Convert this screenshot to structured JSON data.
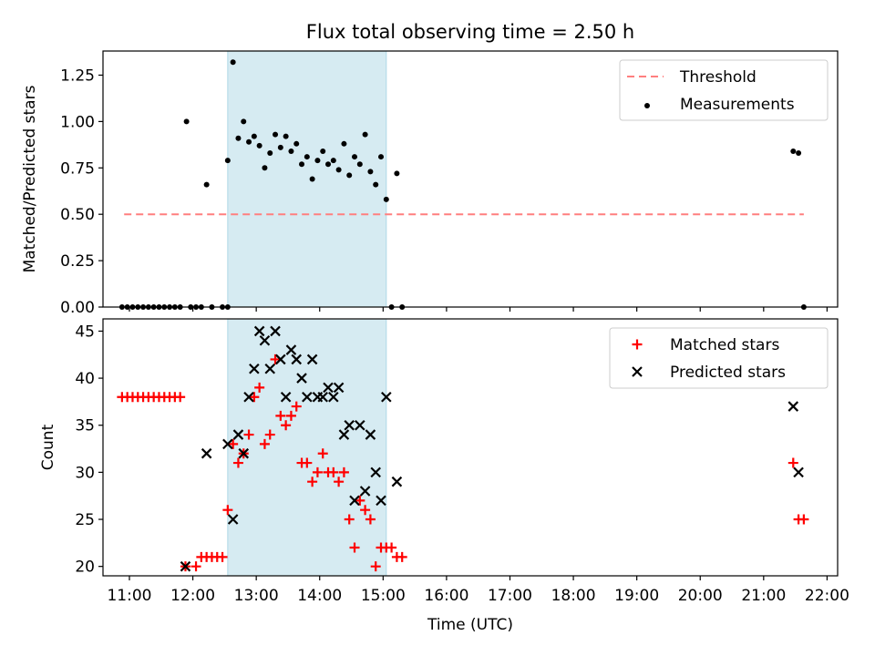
{
  "figure": {
    "title": "Flux total observing time = 2.50 h"
  },
  "chart_data": [
    {
      "type": "scatter",
      "panel": "top",
      "xlabel": "",
      "ylabel": "Matched/Predicted stars",
      "xlim": [
        "10:35",
        "22:10"
      ],
      "ylim": [
        0,
        1.38
      ],
      "yticks": [
        "0.00",
        "0.25",
        "0.50",
        "0.75",
        "1.00",
        "1.25"
      ],
      "grid": false,
      "legend": "top-right",
      "shaded_interval": [
        "12:33",
        "15:03"
      ],
      "threshold": {
        "name": "Threshold",
        "y": 0.5,
        "x": [
          "10:55",
          "21:38"
        ],
        "color": "#ff7f7f",
        "style": "dashed"
      },
      "series": [
        {
          "name": "Measurements",
          "marker": "dot",
          "color": "#000000",
          "points": [
            [
              "10:53",
              0.0
            ],
            [
              "10:58",
              0.0
            ],
            [
              "11:03",
              0.0
            ],
            [
              "11:08",
              0.0
            ],
            [
              "11:13",
              0.0
            ],
            [
              "11:18",
              0.0
            ],
            [
              "11:23",
              0.0
            ],
            [
              "11:28",
              0.0
            ],
            [
              "11:33",
              0.0
            ],
            [
              "11:38",
              0.0
            ],
            [
              "11:43",
              0.0
            ],
            [
              "11:48",
              0.0
            ],
            [
              "11:54",
              1.0
            ],
            [
              "11:58",
              0.0
            ],
            [
              "12:03",
              0.0
            ],
            [
              "12:08",
              0.0
            ],
            [
              "12:13",
              0.66
            ],
            [
              "12:18",
              0.0
            ],
            [
              "12:28",
              0.0
            ],
            [
              "12:33",
              0.0
            ],
            [
              "12:33",
              0.79
            ],
            [
              "12:38",
              1.32
            ],
            [
              "12:43",
              0.91
            ],
            [
              "12:48",
              1.0
            ],
            [
              "12:53",
              0.89
            ],
            [
              "12:58",
              0.92
            ],
            [
              "13:03",
              0.87
            ],
            [
              "13:08",
              0.75
            ],
            [
              "13:13",
              0.83
            ],
            [
              "13:18",
              0.93
            ],
            [
              "13:23",
              0.86
            ],
            [
              "13:28",
              0.92
            ],
            [
              "13:33",
              0.84
            ],
            [
              "13:38",
              0.88
            ],
            [
              "13:43",
              0.77
            ],
            [
              "13:48",
              0.81
            ],
            [
              "13:53",
              0.69
            ],
            [
              "13:58",
              0.79
            ],
            [
              "14:03",
              0.84
            ],
            [
              "14:08",
              0.77
            ],
            [
              "14:13",
              0.79
            ],
            [
              "14:18",
              0.74
            ],
            [
              "14:23",
              0.88
            ],
            [
              "14:28",
              0.71
            ],
            [
              "14:33",
              0.81
            ],
            [
              "14:38",
              0.77
            ],
            [
              "14:43",
              0.93
            ],
            [
              "14:48",
              0.73
            ],
            [
              "14:53",
              0.66
            ],
            [
              "14:58",
              0.81
            ],
            [
              "15:03",
              0.58
            ],
            [
              "15:08",
              0.0
            ],
            [
              "15:13",
              0.72
            ],
            [
              "15:18",
              0.0
            ],
            [
              "21:28",
              0.84
            ],
            [
              "21:33",
              0.83
            ],
            [
              "21:38",
              0.0
            ]
          ]
        }
      ]
    },
    {
      "type": "scatter",
      "panel": "bottom",
      "xlabel": "Time (UTC)",
      "ylabel": "Count",
      "xlim": [
        "10:35",
        "22:10"
      ],
      "ylim": [
        19,
        46.3
      ],
      "xticks": [
        "11:00",
        "12:00",
        "13:00",
        "14:00",
        "15:00",
        "16:00",
        "17:00",
        "18:00",
        "19:00",
        "20:00",
        "21:00",
        "22:00"
      ],
      "yticks": [
        "20",
        "25",
        "30",
        "35",
        "40",
        "45"
      ],
      "grid": false,
      "legend": "top-right",
      "shaded_interval": [
        "12:33",
        "15:03"
      ],
      "series": [
        {
          "name": "Matched stars",
          "marker": "plus",
          "color": "#ff0000",
          "points": [
            [
              "10:53",
              38
            ],
            [
              "10:58",
              38
            ],
            [
              "11:03",
              38
            ],
            [
              "11:08",
              38
            ],
            [
              "11:13",
              38
            ],
            [
              "11:18",
              38
            ],
            [
              "11:23",
              38
            ],
            [
              "11:28",
              38
            ],
            [
              "11:33",
              38
            ],
            [
              "11:38",
              38
            ],
            [
              "11:43",
              38
            ],
            [
              "11:48",
              38
            ],
            [
              "11:53",
              20
            ],
            [
              "12:03",
              20
            ],
            [
              "12:08",
              21
            ],
            [
              "12:13",
              21
            ],
            [
              "12:18",
              21
            ],
            [
              "12:23",
              21
            ],
            [
              "12:28",
              21
            ],
            [
              "12:33",
              26
            ],
            [
              "12:38",
              33
            ],
            [
              "12:43",
              31
            ],
            [
              "12:48",
              32
            ],
            [
              "12:53",
              34
            ],
            [
              "12:58",
              38
            ],
            [
              "13:03",
              39
            ],
            [
              "13:08",
              33
            ],
            [
              "13:13",
              34
            ],
            [
              "13:18",
              42
            ],
            [
              "13:23",
              36
            ],
            [
              "13:28",
              35
            ],
            [
              "13:33",
              36
            ],
            [
              "13:38",
              37
            ],
            [
              "13:43",
              31
            ],
            [
              "13:48",
              31
            ],
            [
              "13:53",
              29
            ],
            [
              "13:58",
              30
            ],
            [
              "14:03",
              32
            ],
            [
              "14:08",
              30
            ],
            [
              "14:13",
              30
            ],
            [
              "14:18",
              29
            ],
            [
              "14:23",
              30
            ],
            [
              "14:28",
              25
            ],
            [
              "14:33",
              22
            ],
            [
              "14:38",
              27
            ],
            [
              "14:43",
              26
            ],
            [
              "14:48",
              25
            ],
            [
              "14:53",
              20
            ],
            [
              "14:58",
              22
            ],
            [
              "15:03",
              22
            ],
            [
              "15:08",
              22
            ],
            [
              "15:13",
              21
            ],
            [
              "15:18",
              21
            ],
            [
              "21:28",
              31
            ],
            [
              "21:33",
              25
            ],
            [
              "21:38",
              25
            ]
          ]
        },
        {
          "name": "Predicted stars",
          "marker": "x",
          "color": "#000000",
          "points": [
            [
              "11:53",
              20
            ],
            [
              "12:13",
              32
            ],
            [
              "12:33",
              33
            ],
            [
              "12:38",
              25
            ],
            [
              "12:43",
              34
            ],
            [
              "12:48",
              32
            ],
            [
              "12:53",
              38
            ],
            [
              "12:58",
              41
            ],
            [
              "13:03",
              45
            ],
            [
              "13:08",
              44
            ],
            [
              "13:13",
              41
            ],
            [
              "13:18",
              45
            ],
            [
              "13:23",
              42
            ],
            [
              "13:28",
              38
            ],
            [
              "13:33",
              43
            ],
            [
              "13:38",
              42
            ],
            [
              "13:43",
              40
            ],
            [
              "13:48",
              38
            ],
            [
              "13:53",
              42
            ],
            [
              "13:58",
              38
            ],
            [
              "14:03",
              38
            ],
            [
              "14:08",
              39
            ],
            [
              "14:13",
              38
            ],
            [
              "14:18",
              39
            ],
            [
              "14:23",
              34
            ],
            [
              "14:28",
              35
            ],
            [
              "14:33",
              27
            ],
            [
              "14:38",
              35
            ],
            [
              "14:43",
              28
            ],
            [
              "14:48",
              34
            ],
            [
              "14:53",
              30
            ],
            [
              "14:58",
              27
            ],
            [
              "15:03",
              38
            ],
            [
              "15:13",
              29
            ],
            [
              "21:28",
              37
            ],
            [
              "21:33",
              30
            ]
          ]
        }
      ]
    }
  ]
}
